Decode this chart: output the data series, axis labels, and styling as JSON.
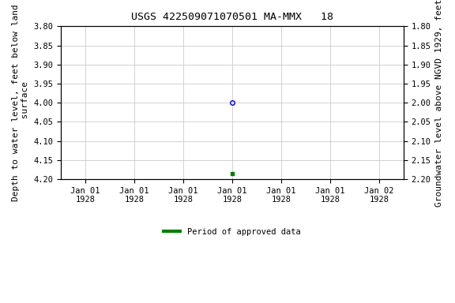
{
  "title": "USGS 422509071070501 MA-MMX   18",
  "ylabel_left": "Depth to water level, feet below land\n surface",
  "ylabel_right": "Groundwater level above NGVD 1929, feet",
  "ylim_left": [
    3.8,
    4.2
  ],
  "ylim_right": [
    2.2,
    1.8
  ],
  "yticks_left": [
    3.8,
    3.85,
    3.9,
    3.95,
    4.0,
    4.05,
    4.1,
    4.15,
    4.2
  ],
  "yticks_right": [
    2.2,
    2.15,
    2.1,
    2.05,
    2.0,
    1.95,
    1.9,
    1.85,
    1.8
  ],
  "data_point_x": 3.0,
  "data_point_y": 4.0,
  "data_point_color": "#0000cc",
  "data_point_marker_size": 4,
  "green_marker_x": 3.0,
  "green_marker_y": 4.185,
  "green_marker_color": "#008000",
  "green_marker_size": 3,
  "background_color": "#ffffff",
  "grid_color": "#c0c0c0",
  "legend_label": "Period of approved data",
  "legend_color": "#008000",
  "font_family": "monospace",
  "title_fontsize": 9.5,
  "tick_fontsize": 7.5,
  "label_fontsize": 8,
  "xtick_positions": [
    0,
    1,
    2,
    3,
    4,
    5,
    6
  ],
  "xtick_labels": [
    "Jan 01\n1928",
    "Jan 01\n1928",
    "Jan 01\n1928",
    "Jan 01\n1928",
    "Jan 01\n1928",
    "Jan 01\n1928",
    "Jan 02\n1928"
  ],
  "xlim": [
    -0.5,
    6.5
  ]
}
